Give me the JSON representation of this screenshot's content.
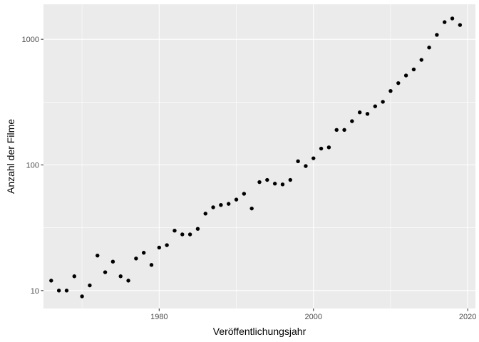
{
  "chart_data": {
    "type": "scatter",
    "title": "",
    "xlabel": "Veröffentlichungsjahr",
    "ylabel": "Anzahl der Filme",
    "y_scale": "log10",
    "xlim": [
      1965,
      2021
    ],
    "ylim": [
      7.2,
      1900
    ],
    "x_ticks": [
      1980,
      2000,
      2020
    ],
    "x_tick_labels": [
      "1980",
      "2000",
      "2020"
    ],
    "y_ticks": [
      10,
      100,
      1000
    ],
    "y_tick_labels": [
      "10",
      "100",
      "1000"
    ],
    "grid": true,
    "legend": "none",
    "x": [
      1966,
      1967,
      1968,
      1969,
      1970,
      1971,
      1972,
      1973,
      1974,
      1975,
      1976,
      1977,
      1978,
      1979,
      1980,
      1981,
      1982,
      1983,
      1984,
      1985,
      1986,
      1987,
      1988,
      1989,
      1990,
      1991,
      1992,
      1993,
      1994,
      1995,
      1996,
      1997,
      1998,
      1999,
      2000,
      2001,
      2002,
      2003,
      2004,
      2005,
      2006,
      2007,
      2008,
      2009,
      2010,
      2011,
      2012,
      2013,
      2014,
      2015,
      2016,
      2017,
      2018,
      2019
    ],
    "y": [
      12,
      10,
      10,
      13,
      9,
      11,
      19,
      14,
      17,
      13,
      12,
      18,
      20,
      16,
      22,
      23,
      30,
      28,
      28,
      31,
      41,
      46,
      48,
      49,
      53,
      59,
      45,
      73,
      76,
      71,
      70,
      76,
      107,
      98,
      113,
      135,
      138,
      190,
      190,
      223,
      262,
      255,
      293,
      318,
      388,
      448,
      515,
      576,
      686,
      860,
      1085,
      1370,
      1465,
      1300
    ]
  },
  "colors": {
    "panel_background": "#EBEBEB",
    "major_grid": "#FFFFFF",
    "point": "#000000",
    "tick_label": "#4D4D4D",
    "tick_mark": "#333333"
  }
}
